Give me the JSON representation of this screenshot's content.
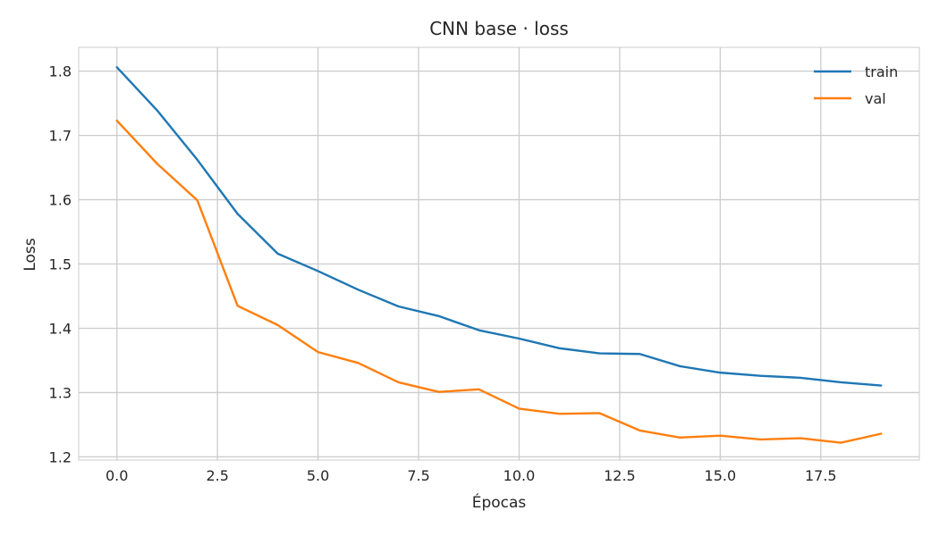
{
  "chart_data": {
    "type": "line",
    "title": "CNN base · loss",
    "xlabel": "Épocas",
    "ylabel": "Loss",
    "xlim": [
      -0.95,
      19.95
    ],
    "ylim": [
      1.195,
      1.837
    ],
    "xticks": [
      0.0,
      2.5,
      5.0,
      7.5,
      10.0,
      12.5,
      15.0,
      17.5
    ],
    "xtick_labels": [
      "0.0",
      "2.5",
      "5.0",
      "7.5",
      "10.0",
      "12.5",
      "15.0",
      "17.5"
    ],
    "yticks": [
      1.2,
      1.3,
      1.4,
      1.5,
      1.6,
      1.7,
      1.8
    ],
    "ytick_labels": [
      "1.2",
      "1.3",
      "1.4",
      "1.5",
      "1.6",
      "1.7",
      "1.8"
    ],
    "grid": true,
    "legend_position": "top-right",
    "x": [
      0,
      1,
      2,
      3,
      4,
      5,
      6,
      7,
      8,
      9,
      10,
      11,
      12,
      13,
      14,
      15,
      16,
      17,
      18,
      19
    ],
    "series": [
      {
        "name": "train",
        "color": "#1f77b4",
        "values": [
          1.806,
          1.739,
          1.662,
          1.578,
          1.516,
          1.489,
          1.46,
          1.434,
          1.419,
          1.397,
          1.384,
          1.369,
          1.361,
          1.36,
          1.341,
          1.331,
          1.326,
          1.323,
          1.316,
          1.311
        ]
      },
      {
        "name": "val",
        "color": "#ff7f0e",
        "values": [
          1.723,
          1.656,
          1.599,
          1.435,
          1.405,
          1.363,
          1.346,
          1.316,
          1.301,
          1.305,
          1.275,
          1.267,
          1.268,
          1.241,
          1.23,
          1.233,
          1.227,
          1.229,
          1.222,
          1.236
        ]
      }
    ]
  }
}
